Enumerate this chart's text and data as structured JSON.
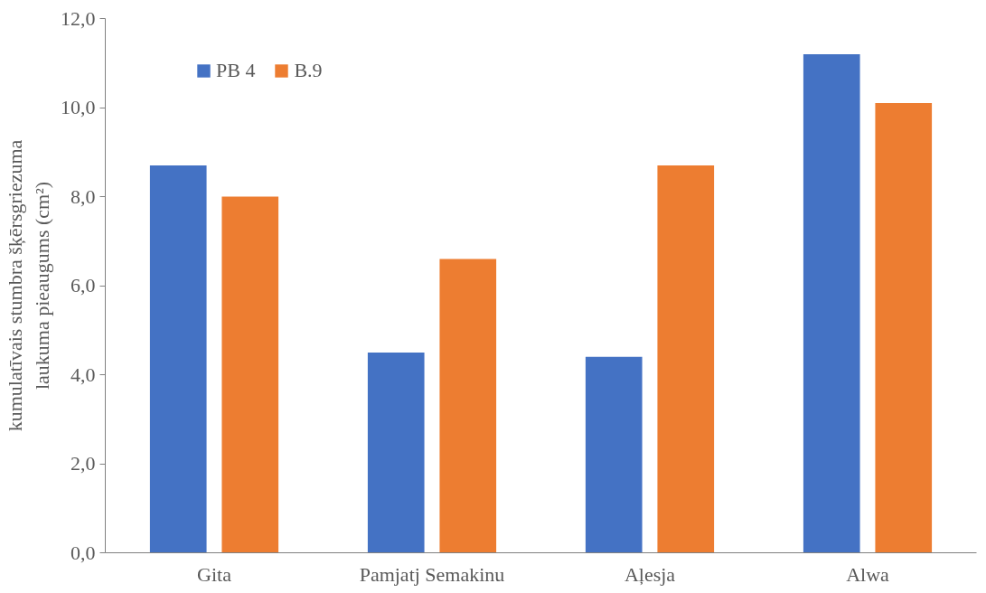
{
  "chart_data": {
    "type": "bar",
    "ylabel": "kumulatīvais stumbra šķērsgriezuma\nlaukuma pieaugums (cm²)",
    "categories": [
      "Gita",
      "Pamjatj Semakinu",
      "Aļesja",
      "Alwa"
    ],
    "series": [
      {
        "name": "PB 4",
        "color": "#4472c4",
        "values": [
          8.7,
          4.5,
          4.4,
          11.2
        ]
      },
      {
        "name": "B.9",
        "color": "#ed7d31",
        "values": [
          8.0,
          6.6,
          8.7,
          10.1
        ]
      }
    ],
    "ylim": [
      0,
      12
    ],
    "yticks": [
      {
        "value": 0,
        "label": "0,0"
      },
      {
        "value": 2,
        "label": "2,0"
      },
      {
        "value": 4,
        "label": "4,0"
      },
      {
        "value": 6,
        "label": "6,0"
      },
      {
        "value": 8,
        "label": "8,0"
      },
      {
        "value": 10,
        "label": "10,0"
      },
      {
        "value": 12,
        "label": "12,0"
      }
    ],
    "grid": false,
    "legend": "top left"
  }
}
